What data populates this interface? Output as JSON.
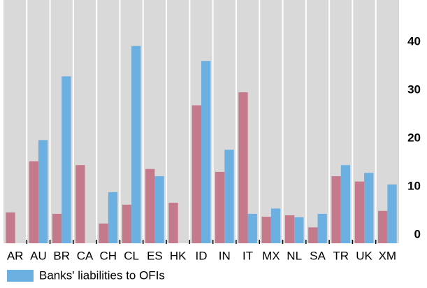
{
  "chart_data": {
    "type": "bar",
    "categories": [
      "AR",
      "AU",
      "BR",
      "CA",
      "CH",
      "CL",
      "ES",
      "HK",
      "ID",
      "IN",
      "IT",
      "MX",
      "NL",
      "SA",
      "TR",
      "UK",
      "XM"
    ],
    "series": [
      {
        "color": "#c47a8b",
        "values": [
          6.4,
          17.0,
          6.1,
          16.2,
          4.1,
          8.0,
          15.4,
          8.4,
          28.6,
          14.8,
          31.3,
          5.5,
          5.8,
          3.3,
          13.9,
          12.8,
          6.7
        ]
      },
      {
        "name": "Banks' liabilities to OFIs",
        "color": "#6cb0e2",
        "values": [
          null,
          21.4,
          34.6,
          null,
          10.6,
          40.9,
          13.9,
          null,
          37.8,
          19.4,
          6.1,
          7.2,
          5.4,
          6.1,
          16.2,
          14.6,
          12.2
        ]
      }
    ],
    "ylim": [
      0,
      50
    ],
    "yticks": [
      0,
      10,
      20,
      30,
      40
    ],
    "y_axis_side": "right",
    "grid": false
  }
}
